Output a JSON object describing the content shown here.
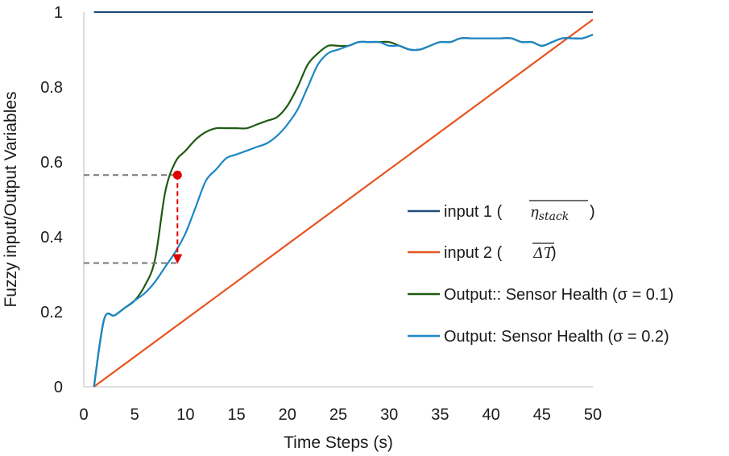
{
  "chart_data": {
    "type": "line",
    "title": "",
    "xlabel": "Time Steps (s)",
    "ylabel": "Fuzzy input/Output Variables",
    "xlim": [
      0,
      50
    ],
    "ylim": [
      0,
      1
    ],
    "x_ticks": [
      "0",
      "5",
      "10",
      "15",
      "20",
      "25",
      "30",
      "35",
      "40",
      "45",
      "50"
    ],
    "y_ticks": [
      "0",
      "0.2",
      "0.4",
      "0.6",
      "0.8",
      "1"
    ],
    "grid": false,
    "legend_position": "right",
    "series": [
      {
        "name": "input 1 (",
        "symbol": "η_stack",
        "symbol_text": "ηstack",
        "color": "#1f4e79",
        "x": [
          1,
          50
        ],
        "y": [
          1.0,
          1.0
        ]
      },
      {
        "name": "input 2 (",
        "symbol": "ΔT",
        "symbol_text": "ΔT",
        "color": "#e8531e",
        "x": [
          1,
          50
        ],
        "y": [
          0.0,
          0.98
        ]
      },
      {
        "name": "Output:: Sensor Health (σ = 0.1)",
        "color": "#1e5a10",
        "x": [
          1,
          2,
          3,
          4,
          5,
          6,
          7,
          8,
          9,
          10,
          11,
          12,
          13,
          14,
          15,
          16,
          17,
          18,
          19,
          20,
          21,
          22,
          23,
          24,
          25,
          26,
          27,
          28,
          29,
          30,
          31,
          32,
          33,
          34,
          35,
          36,
          37,
          38,
          39,
          40,
          41,
          42,
          43,
          44,
          45,
          46,
          47,
          48,
          49,
          50
        ],
        "y": [
          0.0,
          0.18,
          0.19,
          0.21,
          0.23,
          0.27,
          0.34,
          0.52,
          0.6,
          0.63,
          0.66,
          0.68,
          0.69,
          0.69,
          0.69,
          0.69,
          0.7,
          0.71,
          0.72,
          0.75,
          0.8,
          0.86,
          0.89,
          0.91,
          0.91,
          0.91,
          0.92,
          0.92,
          0.92,
          0.92,
          0.91,
          0.9,
          0.9,
          0.91,
          0.92,
          0.92,
          0.93,
          0.93,
          0.93,
          0.93,
          0.93,
          0.93,
          0.92,
          0.92,
          0.91,
          0.92,
          0.93,
          0.93,
          0.93,
          0.94
        ]
      },
      {
        "name": "Output: Sensor Health (σ = 0.2)",
        "color": "#1b86c6",
        "x": [
          1,
          2,
          3,
          4,
          5,
          6,
          7,
          8,
          9,
          10,
          11,
          12,
          13,
          14,
          15,
          16,
          17,
          18,
          19,
          20,
          21,
          22,
          23,
          24,
          25,
          26,
          27,
          28,
          29,
          30,
          31,
          32,
          33,
          34,
          35,
          36,
          37,
          38,
          39,
          40,
          41,
          42,
          43,
          44,
          45,
          46,
          47,
          48,
          49,
          50
        ],
        "y": [
          0.0,
          0.18,
          0.19,
          0.21,
          0.23,
          0.25,
          0.28,
          0.32,
          0.36,
          0.41,
          0.48,
          0.55,
          0.58,
          0.61,
          0.62,
          0.63,
          0.64,
          0.65,
          0.67,
          0.7,
          0.74,
          0.8,
          0.86,
          0.89,
          0.9,
          0.91,
          0.92,
          0.92,
          0.92,
          0.91,
          0.91,
          0.9,
          0.9,
          0.91,
          0.92,
          0.92,
          0.93,
          0.93,
          0.93,
          0.93,
          0.93,
          0.93,
          0.92,
          0.92,
          0.91,
          0.92,
          0.93,
          0.93,
          0.93,
          0.94
        ]
      }
    ],
    "annotations": [
      {
        "type": "dashed-guides-and-arrow",
        "color": "#e00000",
        "guide_color": "#777777",
        "x": 9.2,
        "from_y": 0.565,
        "to_y": 0.33
      }
    ]
  }
}
